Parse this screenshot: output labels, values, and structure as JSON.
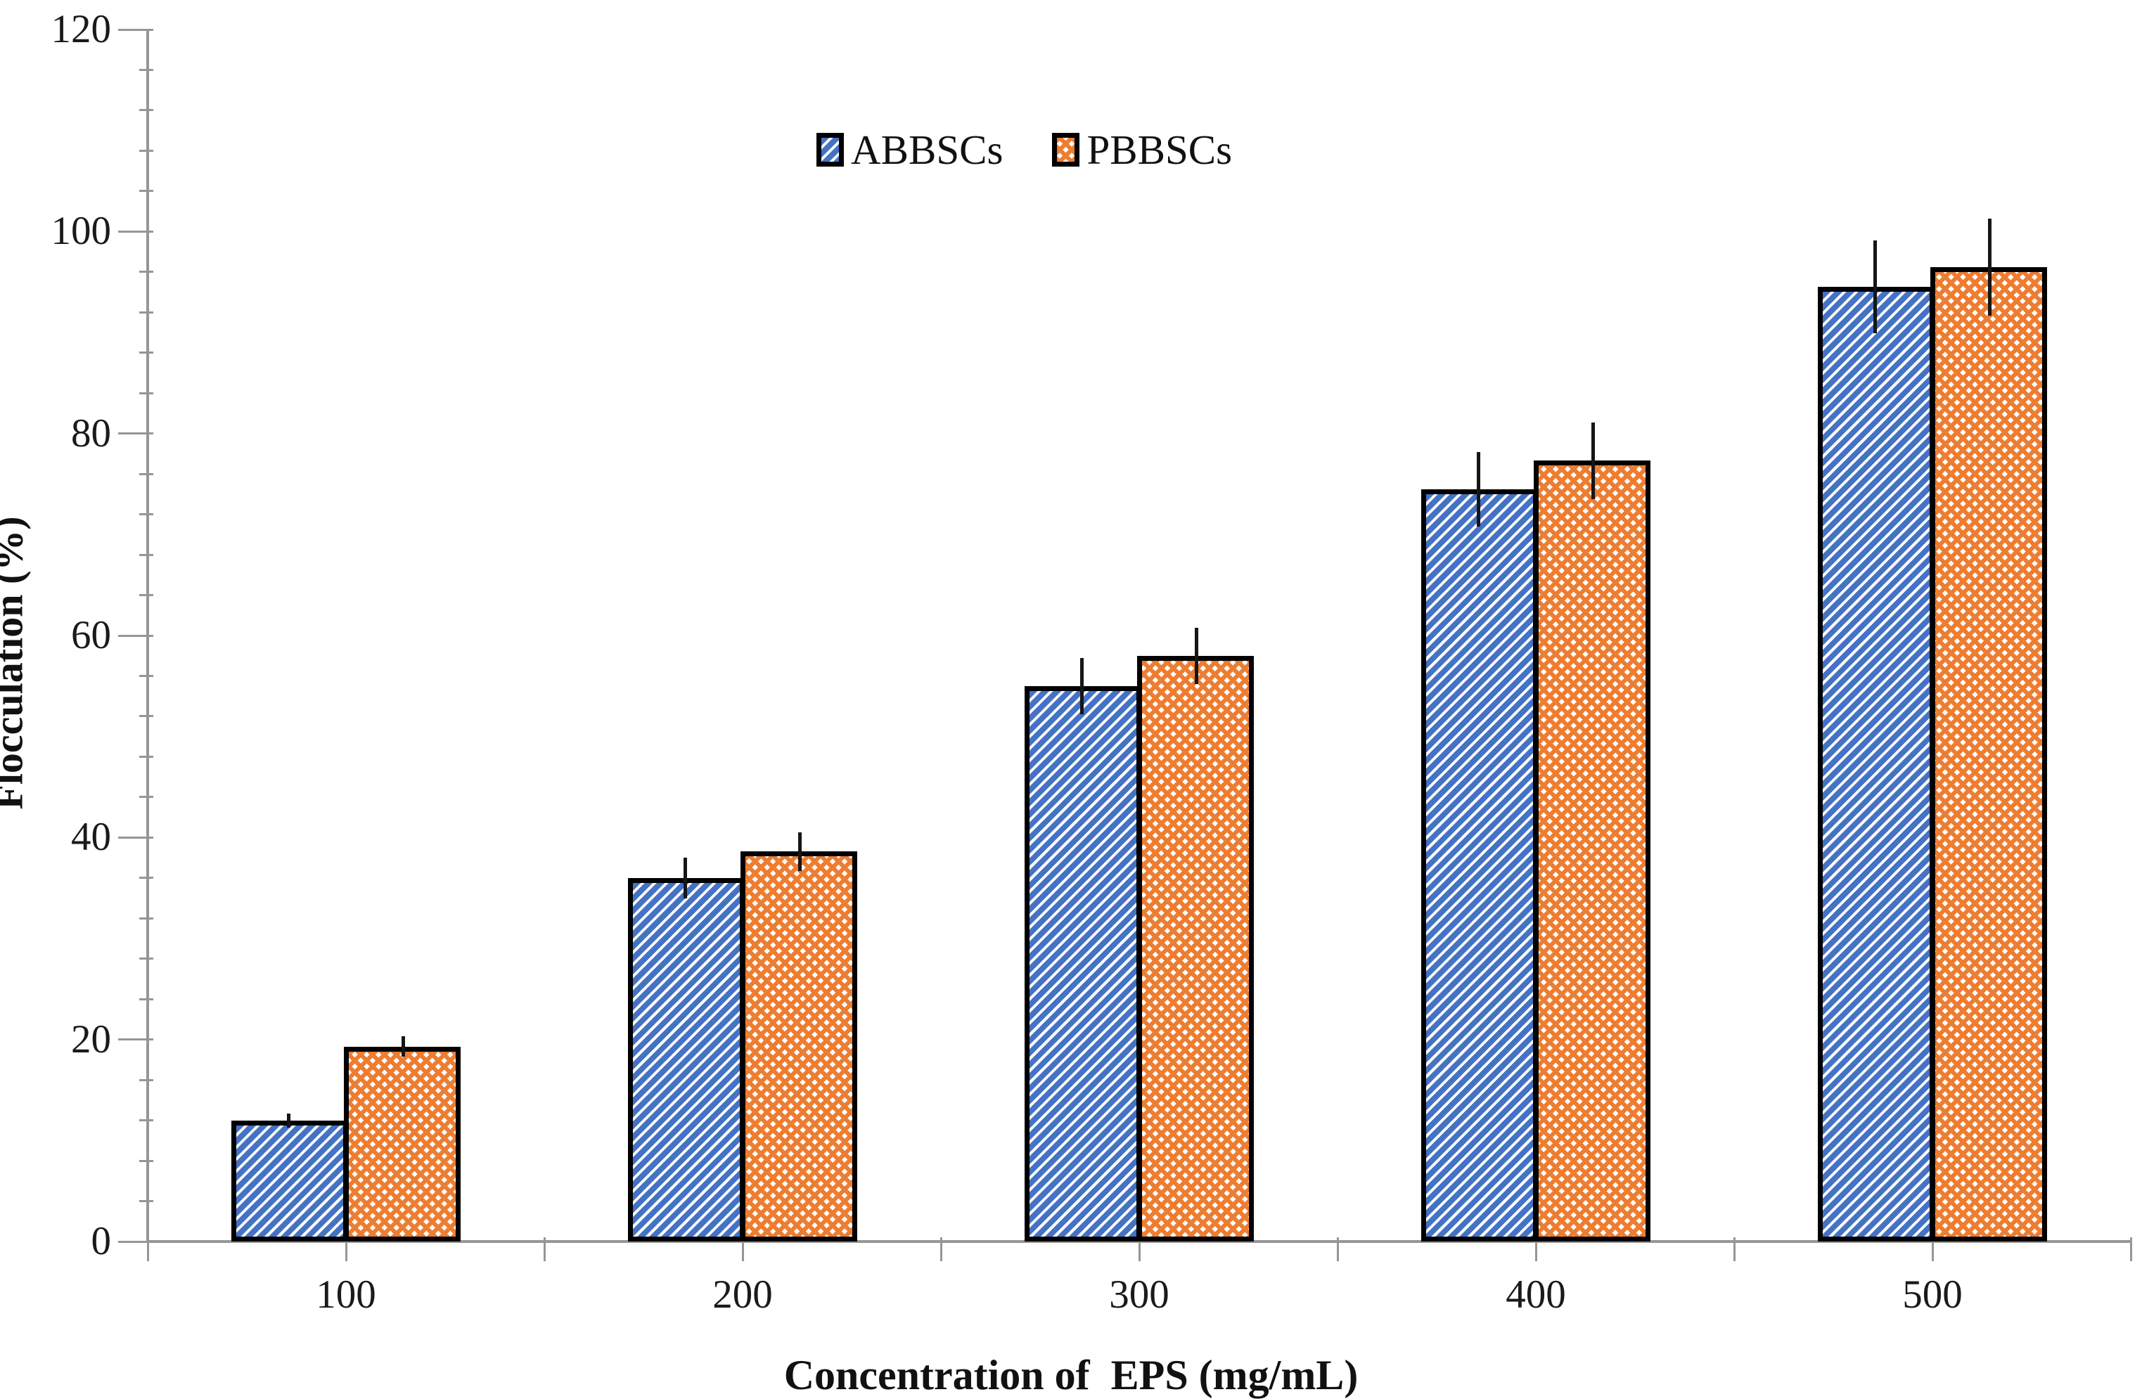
{
  "chart_data": {
    "type": "bar",
    "title": "",
    "xlabel": "Concentration of  EPS (mg/mL)",
    "ylabel": "Flocculation (%)",
    "categories": [
      "100",
      "200",
      "300",
      "400",
      "500"
    ],
    "series": [
      {
        "name": "ABBSCs",
        "color": "#4472C4",
        "pattern": "diagonal-hatch",
        "values": [
          12,
          36,
          55,
          74.5,
          94.5
        ],
        "errors": [
          0.7,
          2.0,
          2.8,
          3.7,
          4.6
        ]
      },
      {
        "name": "PBBSCs",
        "color": "#ED7D31",
        "pattern": "diamond-lattice",
        "values": [
          19.3,
          38.6,
          58,
          77.3,
          96.5
        ],
        "errors": [
          1.0,
          1.9,
          2.8,
          3.8,
          4.8
        ]
      }
    ],
    "ylim": [
      0,
      120
    ],
    "y_major_tick": 20,
    "y_minor_tick": 4,
    "y_tick_labels": [
      "0",
      "20",
      "40",
      "60",
      "80",
      "100",
      "120"
    ],
    "grid": false,
    "legend_position": "top-center",
    "error_bars": "both-directions",
    "axis_color": "#969696",
    "bar_border_color": "#000000",
    "error_bar_color": "#161616",
    "text_color": "#111111"
  }
}
